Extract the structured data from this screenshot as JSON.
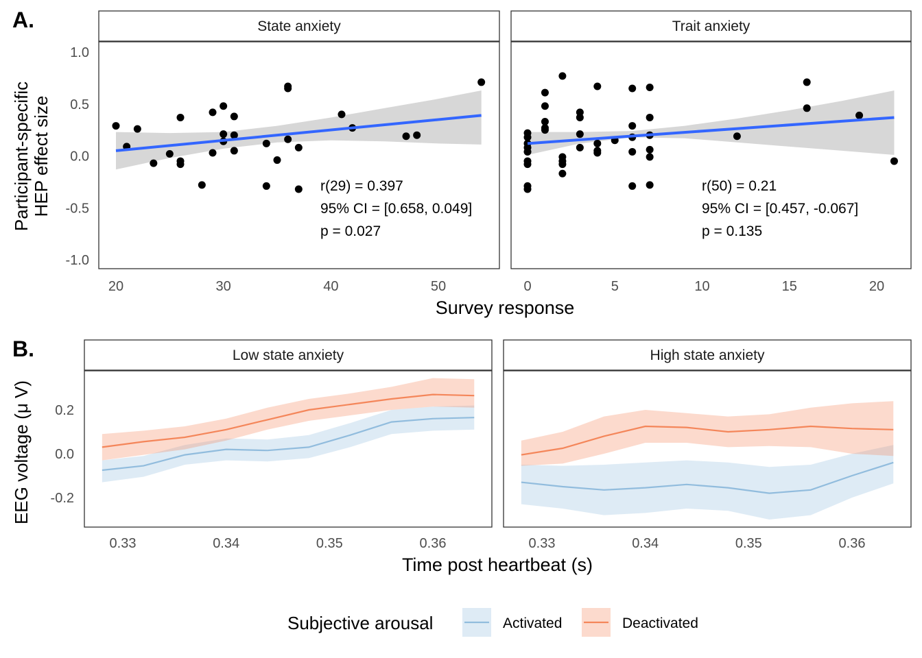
{
  "panel_labels": {
    "a": "A.",
    "b": "B."
  },
  "colors": {
    "regression_line": "#3366FF",
    "ci_ribbon": "#D3D3D3",
    "point": "#000000",
    "activated": "#91BCDD",
    "deactivated": "#F4865A",
    "frame": "#333333"
  },
  "chart_data": [
    {
      "id": "A",
      "type": "scatter",
      "y_title": [
        "Participant-specific",
        "HEP effect size"
      ],
      "x_title": "Survey response",
      "ylim": [
        -1.0,
        1.0
      ],
      "y_ticks": [
        1.0,
        0.5,
        0.0,
        -0.5,
        -1.0
      ],
      "y_tick_labels": [
        "1.0",
        "0.5",
        "0.0",
        "-0.5",
        "-1.0"
      ],
      "grid": false,
      "facets": [
        {
          "strip": "State anxiety",
          "x_ticks": [
            20,
            30,
            40,
            50
          ],
          "x_tick_labels": [
            "20",
            "30",
            "40",
            "50"
          ],
          "points": [
            [
              20,
              0.29
            ],
            [
              21,
              0.09
            ],
            [
              22,
              0.26
            ],
            [
              23.5,
              -0.07
            ],
            [
              25,
              0.02
            ],
            [
              26,
              0.37
            ],
            [
              26,
              -0.05
            ],
            [
              26,
              -0.08
            ],
            [
              28,
              -0.28
            ],
            [
              29,
              0.42
            ],
            [
              29,
              0.03
            ],
            [
              30,
              0.48
            ],
            [
              30,
              0.21
            ],
            [
              30,
              0.14
            ],
            [
              31,
              0.38
            ],
            [
              31,
              0.2
            ],
            [
              31,
              0.05
            ],
            [
              34,
              0.12
            ],
            [
              34,
              -0.29
            ],
            [
              35,
              -0.04
            ],
            [
              36,
              0.67
            ],
            [
              36,
              0.65
            ],
            [
              36,
              0.16
            ],
            [
              37,
              0.08
            ],
            [
              37,
              -0.32
            ],
            [
              41,
              0.4
            ],
            [
              42,
              0.27
            ],
            [
              47,
              0.19
            ],
            [
              48,
              0.2
            ],
            [
              54,
              0.71
            ]
          ],
          "fit": {
            "x": [
              20,
              54
            ],
            "y": [
              0.05,
              0.39
            ]
          },
          "ci": {
            "x": [
              20,
              25,
              30,
              35,
              40,
              45,
              50,
              54
            ],
            "lower": [
              -0.13,
              -0.02,
              0.07,
              0.13,
              0.15,
              0.14,
              0.12,
              0.11
            ],
            "upper": [
              0.23,
              0.22,
              0.23,
              0.29,
              0.37,
              0.46,
              0.55,
              0.63
            ]
          },
          "annotation": [
            "r(29) = 0.397",
            "95% CI = [0.658, 0.049]",
            "p = 0.027"
          ]
        },
        {
          "strip": "Trait anxiety",
          "x_ticks": [
            0,
            5,
            10,
            15,
            20
          ],
          "x_tick_labels": [
            "0",
            "5",
            "10",
            "15",
            "20"
          ],
          "points": [
            [
              0,
              0.22
            ],
            [
              0,
              0.18
            ],
            [
              0,
              0.12
            ],
            [
              0,
              0.08
            ],
            [
              0,
              0.04
            ],
            [
              0,
              -0.05
            ],
            [
              0,
              -0.08
            ],
            [
              0,
              -0.29
            ],
            [
              0,
              -0.32
            ],
            [
              1,
              0.61
            ],
            [
              1,
              0.48
            ],
            [
              1,
              0.33
            ],
            [
              1,
              0.27
            ],
            [
              1,
              0.25
            ],
            [
              2,
              0.77
            ],
            [
              2,
              -0.01
            ],
            [
              2,
              -0.05
            ],
            [
              2,
              -0.08
            ],
            [
              2,
              -0.17
            ],
            [
              3,
              0.42
            ],
            [
              3,
              0.37
            ],
            [
              3,
              0.21
            ],
            [
              3,
              0.08
            ],
            [
              4,
              0.67
            ],
            [
              4,
              0.12
            ],
            [
              4,
              0.05
            ],
            [
              4,
              0.03
            ],
            [
              5,
              0.15
            ],
            [
              6,
              0.65
            ],
            [
              6,
              0.29
            ],
            [
              6,
              0.18
            ],
            [
              6,
              0.04
            ],
            [
              6,
              -0.29
            ],
            [
              7,
              0.66
            ],
            [
              7,
              0.37
            ],
            [
              7,
              0.2
            ],
            [
              7,
              0.06
            ],
            [
              7,
              -0.01
            ],
            [
              7,
              -0.28
            ],
            [
              12,
              0.19
            ],
            [
              16,
              0.71
            ],
            [
              16,
              0.46
            ],
            [
              19,
              0.39
            ],
            [
              21,
              -0.05
            ]
          ],
          "fit": {
            "x": [
              0,
              21
            ],
            "y": [
              0.12,
              0.37
            ]
          },
          "ci": {
            "x": [
              0,
              3,
              6,
              9,
              12,
              15,
              18,
              21
            ],
            "lower": [
              0.01,
              0.12,
              0.18,
              0.17,
              0.13,
              0.09,
              0.05,
              0.01
            ],
            "upper": [
              0.23,
              0.23,
              0.24,
              0.29,
              0.36,
              0.44,
              0.53,
              0.63
            ]
          },
          "annotation": [
            "r(50) = 0.21",
            "95% CI = [0.457, -0.067]",
            "p = 0.135"
          ]
        }
      ]
    },
    {
      "id": "B",
      "type": "line",
      "y_title": "EEG voltage (μ V)",
      "x_title": "Time post heartbeat (s)",
      "ylim": [
        -0.33,
        0.37
      ],
      "y_ticks": [
        0.2,
        0.0,
        -0.2
      ],
      "y_tick_labels": [
        "0.2",
        "0.0",
        "-0.2"
      ],
      "grid": false,
      "legend": {
        "title": "Subjective arousal",
        "position": "bottom",
        "items": [
          "Activated",
          "Deactivated"
        ]
      },
      "facets": [
        {
          "strip": "Low state anxiety",
          "xlim": [
            0.3265,
            0.3657
          ],
          "x_ticks": [
            0.33,
            0.34,
            0.35,
            0.36
          ],
          "x_tick_labels": [
            "0.33",
            "0.34",
            "0.35",
            "0.36"
          ],
          "x": [
            0.328,
            0.332,
            0.336,
            0.34,
            0.344,
            0.348,
            0.352,
            0.356,
            0.36,
            0.364
          ],
          "series": [
            {
              "name": "Activated",
              "values": [
                -0.075,
                -0.055,
                -0.005,
                0.02,
                0.015,
                0.03,
                0.085,
                0.145,
                0.16,
                0.165
              ],
              "lower": [
                -0.13,
                -0.105,
                -0.05,
                -0.03,
                -0.035,
                -0.02,
                0.03,
                0.09,
                0.105,
                0.11
              ],
              "upper": [
                -0.03,
                -0.01,
                0.04,
                0.07,
                0.065,
                0.085,
                0.14,
                0.2,
                0.215,
                0.22
              ]
            },
            {
              "name": "Deactivated",
              "values": [
                0.03,
                0.055,
                0.075,
                0.11,
                0.155,
                0.2,
                0.225,
                0.25,
                0.27,
                0.265
              ],
              "lower": [
                -0.03,
                -0.005,
                0.02,
                0.06,
                0.11,
                0.15,
                0.175,
                0.2,
                0.215,
                0.21
              ],
              "upper": [
                0.09,
                0.105,
                0.125,
                0.16,
                0.21,
                0.25,
                0.275,
                0.305,
                0.345,
                0.34
              ]
            }
          ]
        },
        {
          "strip": "High state anxiety",
          "xlim": [
            0.3265,
            0.3657
          ],
          "x_ticks": [
            0.33,
            0.34,
            0.35,
            0.36
          ],
          "x_tick_labels": [
            "0.33",
            "0.34",
            "0.35",
            "0.36"
          ],
          "x": [
            0.328,
            0.332,
            0.336,
            0.34,
            0.344,
            0.348,
            0.352,
            0.356,
            0.36,
            0.364
          ],
          "series": [
            {
              "name": "Activated",
              "values": [
                -0.13,
                -0.15,
                -0.165,
                -0.155,
                -0.14,
                -0.155,
                -0.18,
                -0.165,
                -0.1,
                -0.04
              ],
              "lower": [
                -0.23,
                -0.25,
                -0.28,
                -0.27,
                -0.25,
                -0.26,
                -0.3,
                -0.28,
                -0.2,
                -0.135
              ],
              "upper": [
                -0.05,
                -0.055,
                -0.05,
                -0.04,
                -0.03,
                -0.04,
                -0.06,
                -0.05,
                0.0,
                0.04
              ]
            },
            {
              "name": "Deactivated",
              "values": [
                -0.005,
                0.025,
                0.08,
                0.125,
                0.12,
                0.1,
                0.11,
                0.125,
                0.115,
                0.11
              ],
              "lower": [
                -0.055,
                -0.045,
                0.0,
                0.05,
                0.05,
                0.03,
                0.035,
                0.03,
                0.0,
                -0.01
              ],
              "upper": [
                0.06,
                0.1,
                0.17,
                0.2,
                0.185,
                0.17,
                0.18,
                0.21,
                0.23,
                0.24
              ]
            }
          ]
        }
      ]
    }
  ]
}
